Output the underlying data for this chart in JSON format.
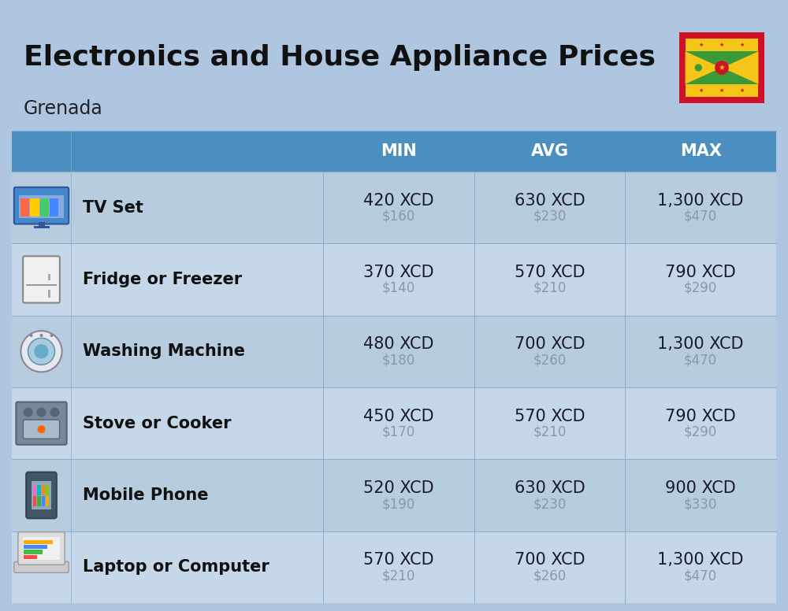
{
  "title": "Electronics and House Appliance Prices",
  "subtitle": "Grenada",
  "background_color": "#aec6df",
  "header_color": "#4a8fc0",
  "header_text_color": "#ffffff",
  "row_colors": [
    "#b8ccdf",
    "#c5d7e8"
  ],
  "col_divider_color": "#8aaec8",
  "main_value_color": "#1a1a2e",
  "sub_value_color": "#8899aa",
  "item_name_color": "#111111",
  "title_color": "#111111",
  "subtitle_color": "#222222",
  "columns": [
    "MIN",
    "AVG",
    "MAX"
  ],
  "rows": [
    {
      "name": "TV Set",
      "min_xcd": "420 XCD",
      "min_usd": "$160",
      "avg_xcd": "630 XCD",
      "avg_usd": "$230",
      "max_xcd": "1,300 XCD",
      "max_usd": "$470"
    },
    {
      "name": "Fridge or Freezer",
      "min_xcd": "370 XCD",
      "min_usd": "$140",
      "avg_xcd": "570 XCD",
      "avg_usd": "$210",
      "max_xcd": "790 XCD",
      "max_usd": "$290"
    },
    {
      "name": "Washing Machine",
      "min_xcd": "480 XCD",
      "min_usd": "$180",
      "avg_xcd": "700 XCD",
      "avg_usd": "$260",
      "max_xcd": "1,300 XCD",
      "max_usd": "$470"
    },
    {
      "name": "Stove or Cooker",
      "min_xcd": "450 XCD",
      "min_usd": "$170",
      "avg_xcd": "570 XCD",
      "avg_usd": "$210",
      "max_xcd": "790 XCD",
      "max_usd": "$290"
    },
    {
      "name": "Mobile Phone",
      "min_xcd": "520 XCD",
      "min_usd": "$190",
      "avg_xcd": "630 XCD",
      "avg_usd": "$230",
      "max_xcd": "900 XCD",
      "max_usd": "$330"
    },
    {
      "name": "Laptop or Computer",
      "min_xcd": "570 XCD",
      "min_usd": "$210",
      "avg_xcd": "700 XCD",
      "avg_usd": "$260",
      "max_xcd": "1,300 XCD",
      "max_usd": "$470"
    }
  ],
  "title_fontsize": 26,
  "subtitle_fontsize": 17,
  "header_fontsize": 15,
  "item_name_fontsize": 15,
  "value_fontsize": 15,
  "subvalue_fontsize": 12
}
